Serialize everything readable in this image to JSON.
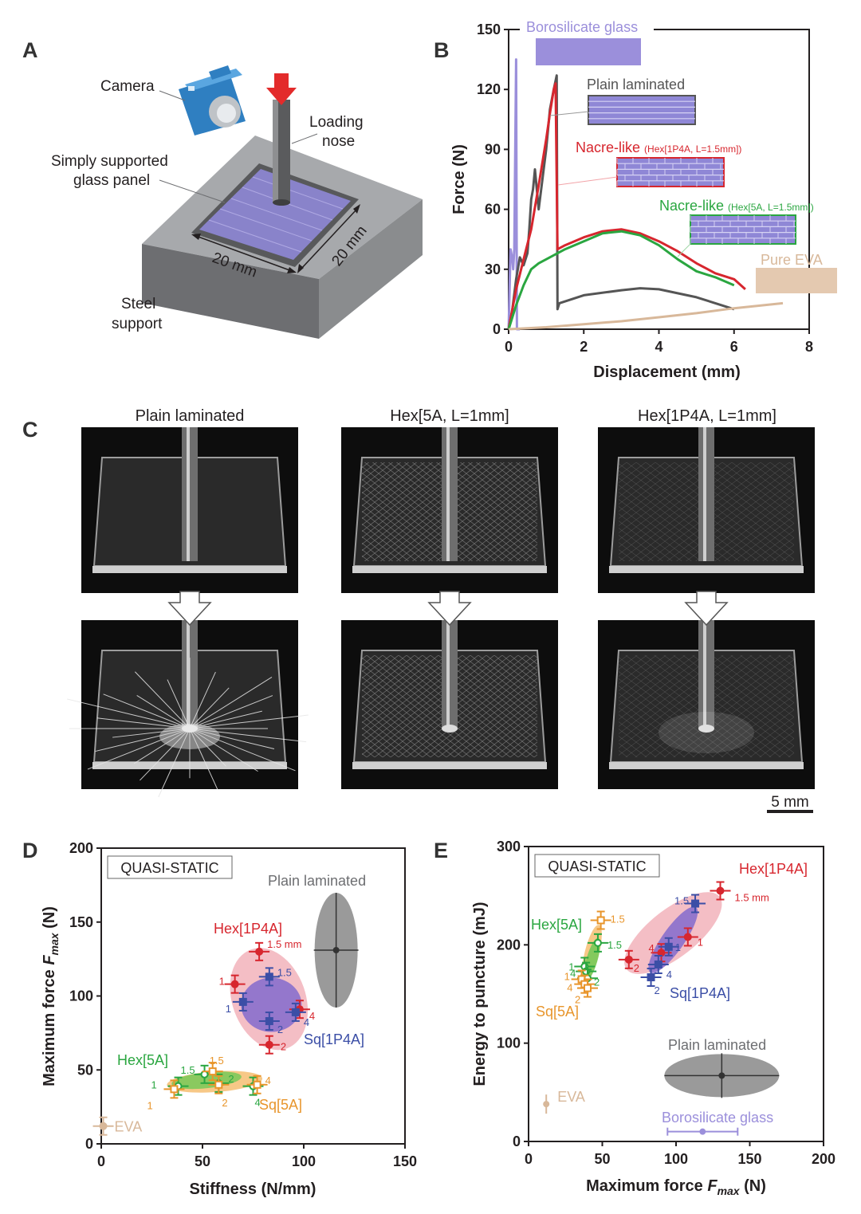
{
  "panel_labels": {
    "a": "A",
    "b": "B",
    "c": "C",
    "d": "D",
    "e": "E"
  },
  "panel_a": {
    "camera": "Camera",
    "loading_line1": "Loading",
    "loading_line2": "nose",
    "panel_line1": "Simply supported",
    "panel_line2": "glass panel",
    "dim_1": "20 mm",
    "dim_2": "20 mm",
    "support_line1": "Steel",
    "support_line2": "support"
  },
  "panel_c": {
    "titles": [
      "Plain laminated",
      "Hex[5A, L=1mm]",
      "Hex[1P4A, L=1mm]"
    ],
    "scalebar": "5 mm"
  },
  "colors": {
    "plain": "#555555",
    "hex1p4a": "#d7262e",
    "hex5a": "#2aa640",
    "sq1p4a": "#3b4ea6",
    "sq5a": "#e8952b",
    "glass": "#9b8fdb",
    "eva": "#d8b89a",
    "hex1p4a_fill": "#f2b3bb",
    "sq1p4a_fill": "#8a6fcc",
    "hex5a_fill": "#7dc95b",
    "sq5a_fill": "#f6c27a"
  },
  "chart_data": [
    {
      "id": "B",
      "type": "line",
      "xlabel": "Displacement (mm)",
      "ylabel": "Force (N)",
      "xlim": [
        0,
        8
      ],
      "ylim": [
        0,
        150
      ],
      "xticks": [
        "0",
        "2",
        "4",
        "6",
        "8"
      ],
      "yticks": [
        "0",
        "30",
        "60",
        "90",
        "120",
        "150"
      ],
      "series": [
        {
          "name": "Borosilicate glass",
          "color": "#9b8fdb",
          "x": [
            0,
            0.05,
            0.1,
            0.12,
            0.15,
            0.2,
            0.22,
            0.3
          ],
          "y": [
            0,
            40,
            35,
            30,
            40,
            135,
            0,
            0
          ]
        },
        {
          "name": "Plain laminated",
          "color": "#555555",
          "x": [
            0,
            0.1,
            0.2,
            0.3,
            0.4,
            0.5,
            0.55,
            0.6,
            0.65,
            0.7,
            0.8,
            0.9,
            1.0,
            1.1,
            1.2,
            1.28,
            1.3,
            1.35,
            2,
            3,
            3.5,
            4,
            5,
            6
          ],
          "y": [
            0,
            10,
            25,
            36,
            32,
            38,
            50,
            65,
            70,
            80,
            60,
            75,
            90,
            110,
            120,
            127,
            10,
            13,
            17,
            19.5,
            20.5,
            20,
            16,
            10
          ]
        },
        {
          "name": "Nacre-like (Hex[1P4A, L=1.5mm])",
          "color": "#d7262e",
          "x": [
            0,
            0.2,
            0.4,
            0.6,
            0.8,
            1.0,
            1.1,
            1.2,
            1.25,
            1.3,
            1.5,
            2,
            2.5,
            3,
            3.5,
            4,
            4.5,
            5,
            5.5,
            6,
            6.3
          ],
          "y": [
            0,
            20,
            35,
            50,
            72,
            95,
            108,
            120,
            123,
            40,
            42,
            46,
            49,
            50,
            48,
            44,
            39,
            33,
            28,
            25,
            20
          ]
        },
        {
          "name": "Nacre-like (Hex[5A, L=1.5mm])",
          "color": "#2aa640",
          "x": [
            0,
            0.2,
            0.4,
            0.6,
            0.8,
            1.0,
            1.5,
            2,
            2.5,
            3,
            3.5,
            4,
            4.5,
            5,
            5.5,
            6
          ],
          "y": [
            0,
            12,
            22,
            30,
            33,
            35,
            40,
            44,
            48,
            49,
            47,
            42,
            35,
            29,
            26,
            22
          ]
        },
        {
          "name": "Pure EVA",
          "color": "#d8b89a",
          "x": [
            0,
            1,
            2,
            3,
            4,
            5,
            6,
            7.3
          ],
          "y": [
            0,
            1,
            2.5,
            4,
            6,
            8,
            10.5,
            13
          ]
        }
      ]
    },
    {
      "id": "D",
      "type": "scatter",
      "box_label": "QUASI-STATIC",
      "xlabel": "Stiffness (N/mm)",
      "ylabel_prefix": "Maximum force ",
      "ylabel_italic": "F",
      "ylabel_sub": "max",
      "ylabel_suffix": " (N)",
      "xlim": [
        0,
        150
      ],
      "ylim": [
        0,
        200
      ],
      "xticks": [
        "0",
        "50",
        "100",
        "150"
      ],
      "yticks": [
        "0",
        "50",
        "100",
        "150",
        "200"
      ],
      "series": [
        {
          "name": "Hex[1P4A]",
          "color": "#d7262e",
          "marker": "circle",
          "points": [
            {
              "x": 66,
              "y": 108,
              "label": "1"
            },
            {
              "x": 78,
              "y": 130,
              "label": "1.5 mm"
            },
            {
              "x": 83,
              "y": 67,
              "label": "2"
            },
            {
              "x": 98,
              "y": 91,
              "label": "4"
            }
          ]
        },
        {
          "name": "Sq[1P4A]",
          "color": "#3b4ea6",
          "marker": "square",
          "points": [
            {
              "x": 70,
              "y": 96,
              "label": "1"
            },
            {
              "x": 83,
              "y": 113,
              "label": "1.5"
            },
            {
              "x": 83,
              "y": 83,
              "label": "2"
            },
            {
              "x": 96,
              "y": 89,
              "label": "4"
            }
          ]
        },
        {
          "name": "Hex[5A]",
          "color": "#2aa640",
          "marker": "circle-open",
          "points": [
            {
              "x": 38,
              "y": 39,
              "label": "1"
            },
            {
              "x": 51,
              "y": 47,
              "label": "1.5"
            },
            {
              "x": 58,
              "y": 41,
              "label": "2"
            },
            {
              "x": 75,
              "y": 39,
              "label": "4"
            }
          ]
        },
        {
          "name": "Sq[5A]",
          "color": "#e8952b",
          "marker": "square-open",
          "points": [
            {
              "x": 36,
              "y": 37,
              "label": "1"
            },
            {
              "x": 55,
              "y": 49,
              "label": "1.5"
            },
            {
              "x": 58,
              "y": 40,
              "label": "2"
            },
            {
              "x": 77,
              "y": 40,
              "label": "4"
            }
          ]
        },
        {
          "name": "Plain laminated",
          "color": "#555555",
          "marker": "ellipse",
          "points": [
            {
              "x": 116,
              "y": 131,
              "label": ""
            }
          ]
        },
        {
          "name": "EVA",
          "color": "#d8b89a",
          "marker": "circle",
          "points": [
            {
              "x": 1,
              "y": 12,
              "label": ""
            }
          ]
        }
      ]
    },
    {
      "id": "E",
      "type": "scatter",
      "box_label": "QUASI-STATIC",
      "xlabel_prefix": "Maximum force ",
      "xlabel_italic": "F",
      "xlabel_sub": "max",
      "xlabel_suffix": " (N)",
      "ylabel": "Energy to puncture (mJ)",
      "xlim": [
        0,
        200
      ],
      "ylim": [
        0,
        300
      ],
      "xticks": [
        "0",
        "50",
        "100",
        "150",
        "200"
      ],
      "yticks": [
        "0",
        "100",
        "200",
        "300"
      ],
      "series": [
        {
          "name": "Hex[1P4A]",
          "color": "#d7262e",
          "marker": "circle",
          "points": [
            {
              "x": 68,
              "y": 185,
              "label": "2"
            },
            {
              "x": 90,
              "y": 192,
              "label": "4"
            },
            {
              "x": 108,
              "y": 208,
              "label": "1"
            },
            {
              "x": 130,
              "y": 255,
              "label": "1.5 mm"
            }
          ]
        },
        {
          "name": "Sq[1P4A]",
          "color": "#3b4ea6",
          "marker": "square",
          "points": [
            {
              "x": 83,
              "y": 167,
              "label": "2"
            },
            {
              "x": 88,
              "y": 180,
              "label": "4"
            },
            {
              "x": 95,
              "y": 198,
              "label": "1"
            },
            {
              "x": 113,
              "y": 242,
              "label": "1.5"
            }
          ]
        },
        {
          "name": "Hex[5A]",
          "color": "#2aa640",
          "marker": "circle-open",
          "points": [
            {
              "x": 38,
              "y": 178,
              "label": "1"
            },
            {
              "x": 39,
              "y": 173,
              "label": "4"
            },
            {
              "x": 40,
              "y": 166,
              "label": "2"
            },
            {
              "x": 47,
              "y": 202,
              "label": "1.5"
            }
          ]
        },
        {
          "name": "Sq[5A]",
          "color": "#e8952b",
          "marker": "square-open",
          "points": [
            {
              "x": 36,
              "y": 165,
              "label": "1"
            },
            {
              "x": 38,
              "y": 160,
              "label": "4"
            },
            {
              "x": 40,
              "y": 156,
              "label": "2"
            },
            {
              "x": 49,
              "y": 225,
              "label": "1.5"
            }
          ]
        },
        {
          "name": "Plain laminated",
          "color": "#555555",
          "marker": "ellipse",
          "points": [
            {
              "x": 131,
              "y": 67,
              "label": ""
            }
          ]
        },
        {
          "name": "Borosilicate glass",
          "color": "#9b8fdb",
          "marker": "circle",
          "points": [
            {
              "x": 118,
              "y": 10,
              "label": ""
            }
          ]
        },
        {
          "name": "EVA",
          "color": "#d8b89a",
          "marker": "circle",
          "points": [
            {
              "x": 12,
              "y": 38,
              "label": ""
            }
          ]
        }
      ]
    }
  ]
}
